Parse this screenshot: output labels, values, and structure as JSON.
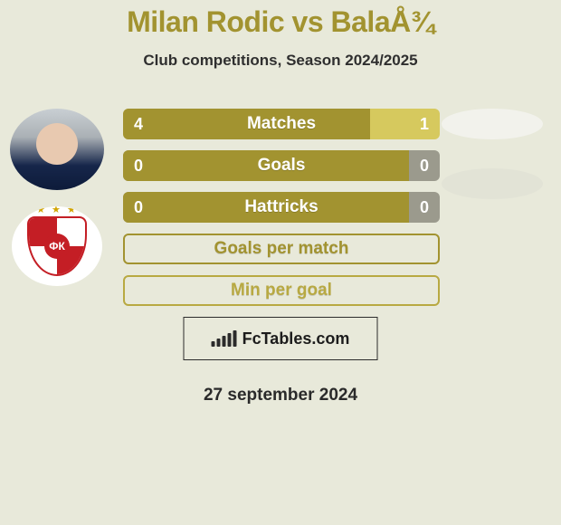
{
  "colors": {
    "background": "#e8e9da",
    "title": "#a29330",
    "text_dark": "#2f2f2f",
    "bar_left": "#a29330",
    "bar_right_gold": "#d6c95e",
    "bar_right_neutral": "#9b9a8d",
    "oval_player": "#f2f2ec",
    "oval_opponent": "#e2e3d6",
    "pill_border": "#a29330",
    "pill_border2": "#b8a942"
  },
  "title": "Milan Rodic vs BalaÅ¾",
  "subtitle": "Club competitions, Season 2024/2025",
  "stats": [
    {
      "label": "Matches",
      "left_value": "4",
      "right_value": "1",
      "left_pct": 78,
      "right_color_key": "bar_right_gold",
      "oval_color_key": "oval_player"
    },
    {
      "label": "Goals",
      "left_value": "0",
      "right_value": "0",
      "left_pct": 94,
      "right_color_key": "bar_right_neutral",
      "oval_color_key": "oval_opponent"
    },
    {
      "label": "Hattricks",
      "left_value": "0",
      "right_value": "0",
      "left_pct": 94,
      "right_color_key": "bar_right_neutral",
      "oval_color_key": null
    }
  ],
  "pill_stats": [
    {
      "label": "Goals per match",
      "border_key": "pill_border"
    },
    {
      "label": "Min per goal",
      "border_key": "pill_border2"
    }
  ],
  "branding": {
    "text": "FcTables.com"
  },
  "footer_date": "27 september 2024",
  "mini_bar_heights": [
    6,
    9,
    12,
    15,
    18
  ],
  "club_star_row": "★ ★ ★",
  "club_initials": "ФК"
}
